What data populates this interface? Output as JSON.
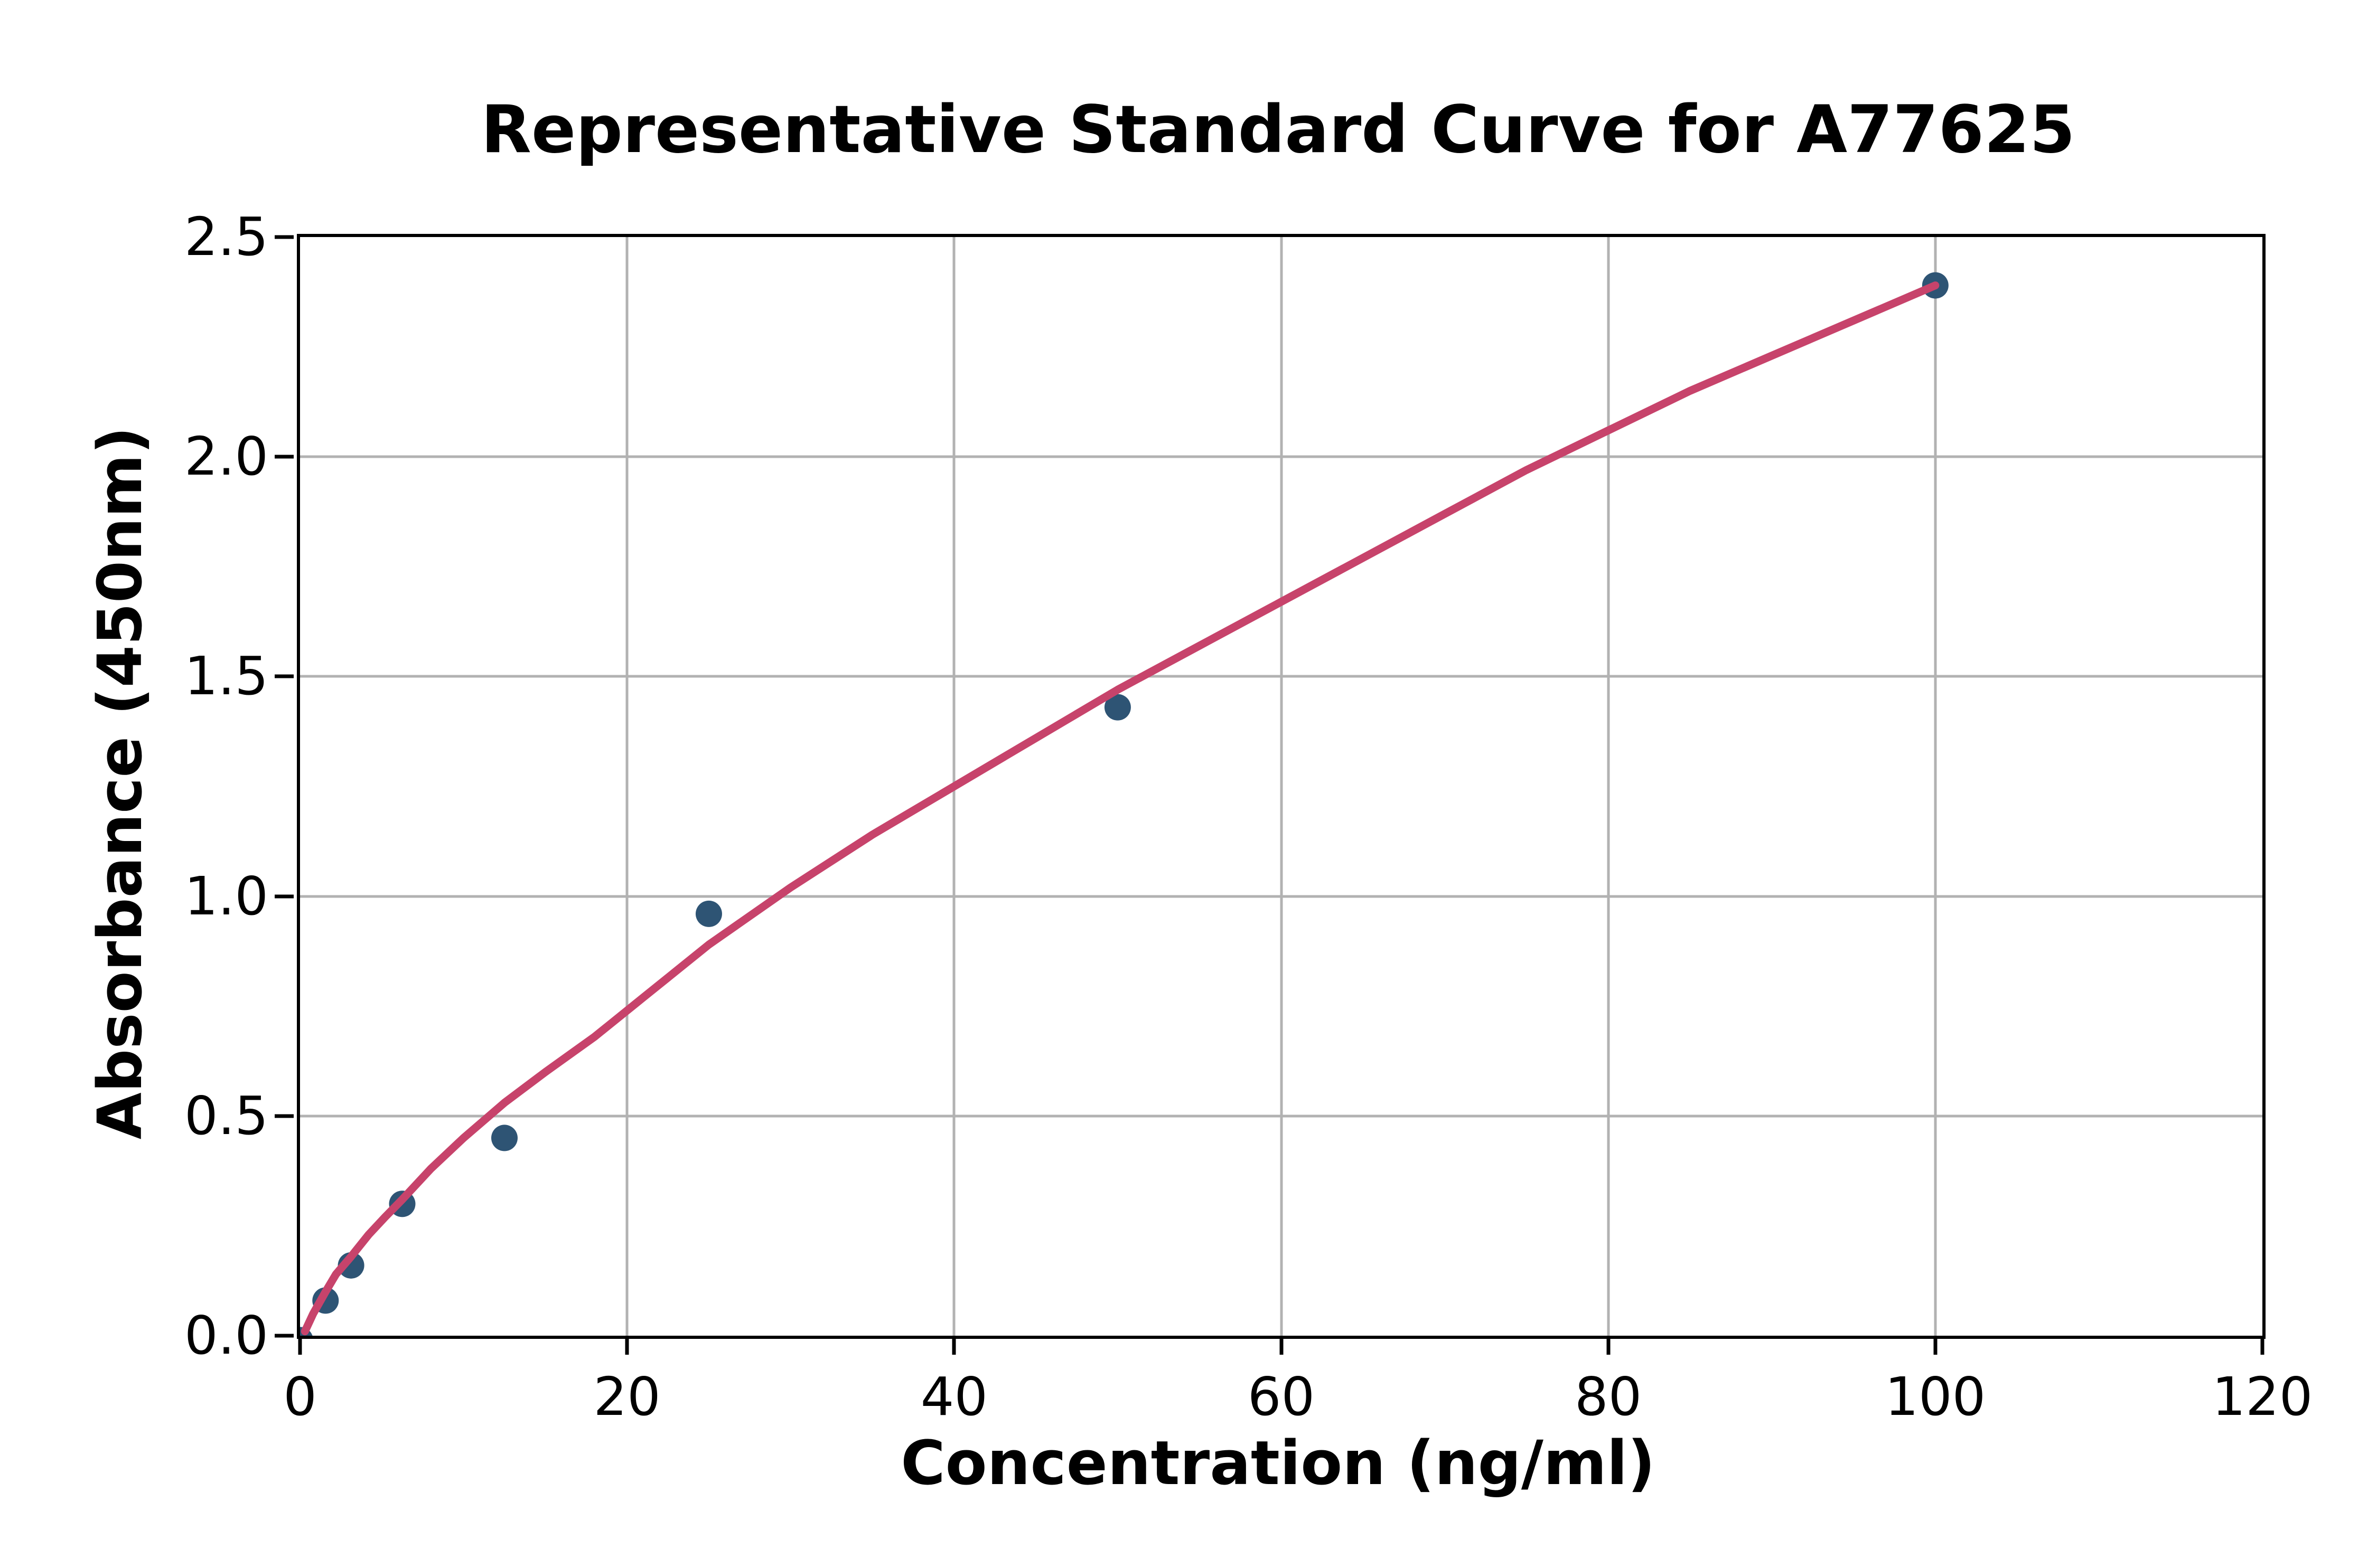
{
  "chart_data": {
    "type": "scatter",
    "title": "Representative Standard Curve for A77625",
    "xlabel": "Concentration (ng/ml)",
    "ylabel": "Absorbance (450nm)",
    "xlim": [
      0,
      120
    ],
    "ylim": [
      0,
      2.5
    ],
    "x_tick_labels": [
      "0",
      "20",
      "40",
      "60",
      "80",
      "100",
      "120"
    ],
    "x_tick_values": [
      0,
      20,
      40,
      60,
      80,
      100,
      120
    ],
    "y_tick_labels": [
      "0.0",
      "0.5",
      "1.0",
      "1.5",
      "2.0",
      "2.5"
    ],
    "y_tick_values": [
      0,
      0.5,
      1.0,
      1.5,
      2.0,
      2.5
    ],
    "grid": true,
    "legend_position": "none",
    "colors": {
      "data_points": "#2e5474",
      "fitted_curve": "#c7436b",
      "gridlines": "#b2b2b2",
      "axes": "#000000",
      "background": "#ffffff"
    },
    "series": [
      {
        "name": "standard-data-points",
        "type": "scatter",
        "color": "#2e5474",
        "points": [
          {
            "x": 0,
            "y": -0.01
          },
          {
            "x": 1.56,
            "y": 0.08
          },
          {
            "x": 3.12,
            "y": 0.16
          },
          {
            "x": 6.25,
            "y": 0.3
          },
          {
            "x": 12.5,
            "y": 0.45
          },
          {
            "x": 25,
            "y": 0.96
          },
          {
            "x": 50,
            "y": 1.43
          },
          {
            "x": 100,
            "y": 2.39
          }
        ]
      },
      {
        "name": "fitted-standard-curve",
        "type": "line",
        "color": "#c7436b",
        "points": [
          {
            "x": 0.3,
            "y": 0.01
          },
          {
            "x": 0.8,
            "y": 0.05
          },
          {
            "x": 1.56,
            "y": 0.1
          },
          {
            "x": 2.2,
            "y": 0.14
          },
          {
            "x": 3.12,
            "y": 0.18
          },
          {
            "x": 4.2,
            "y": 0.23
          },
          {
            "x": 5.2,
            "y": 0.27
          },
          {
            "x": 6.25,
            "y": 0.31
          },
          {
            "x": 8,
            "y": 0.38
          },
          {
            "x": 10,
            "y": 0.45
          },
          {
            "x": 12.5,
            "y": 0.53
          },
          {
            "x": 15,
            "y": 0.6
          },
          {
            "x": 18,
            "y": 0.68
          },
          {
            "x": 21,
            "y": 0.77
          },
          {
            "x": 25,
            "y": 0.89
          },
          {
            "x": 30,
            "y": 1.02
          },
          {
            "x": 35,
            "y": 1.14
          },
          {
            "x": 40,
            "y": 1.25
          },
          {
            "x": 45,
            "y": 1.36
          },
          {
            "x": 50,
            "y": 1.47
          },
          {
            "x": 55,
            "y": 1.57
          },
          {
            "x": 60,
            "y": 1.67
          },
          {
            "x": 65,
            "y": 1.77
          },
          {
            "x": 70,
            "y": 1.87
          },
          {
            "x": 75,
            "y": 1.97
          },
          {
            "x": 80,
            "y": 2.06
          },
          {
            "x": 85,
            "y": 2.15
          },
          {
            "x": 90,
            "y": 2.23
          },
          {
            "x": 95,
            "y": 2.31
          },
          {
            "x": 100,
            "y": 2.39
          }
        ]
      }
    ]
  }
}
